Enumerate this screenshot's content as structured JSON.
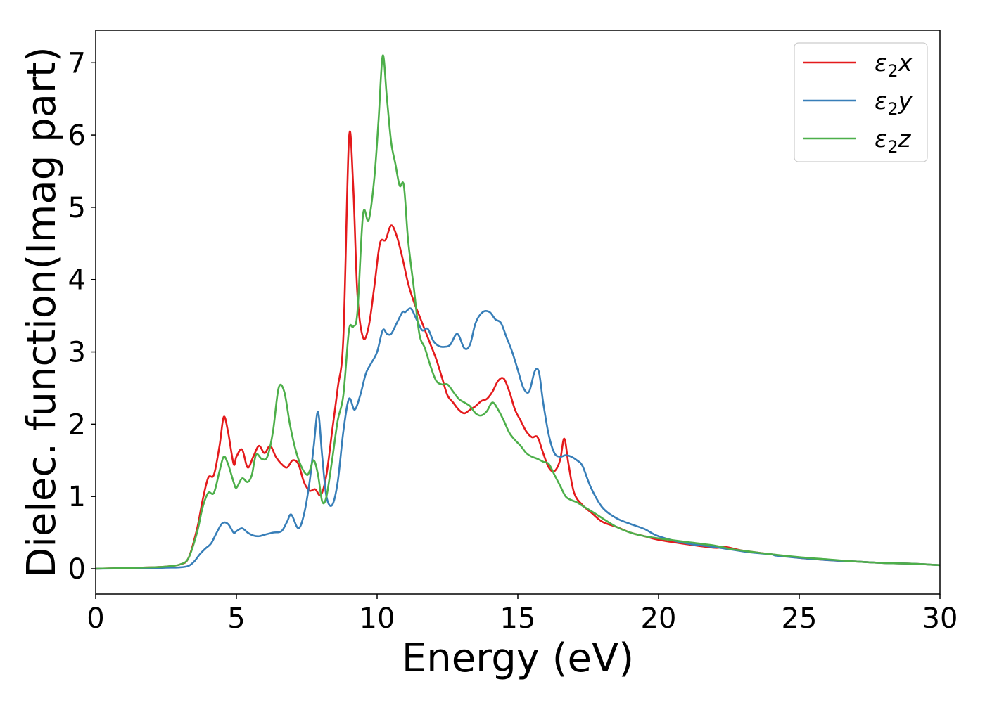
{
  "chart_data": {
    "type": "line",
    "xlabel": "Energy (eV)",
    "ylabel": "Dielec. function(Imag part)",
    "xlim": [
      0,
      30
    ],
    "ylim": [
      -0.35,
      7.45
    ],
    "xticks": [
      0,
      5,
      10,
      15,
      20,
      25,
      30
    ],
    "yticks": [
      0,
      1,
      2,
      3,
      4,
      5,
      6,
      7
    ],
    "grid": false,
    "legend_position": "top-right",
    "series": [
      {
        "name": "ε₂x",
        "legend": {
          "symbol": "ε",
          "sub": "2",
          "suffix": "x"
        },
        "color": "#e41a1c",
        "x": [
          0,
          1,
          2,
          2.5,
          3,
          3.3,
          3.6,
          3.8,
          4.0,
          4.2,
          4.4,
          4.55,
          4.7,
          4.9,
          5.0,
          5.2,
          5.4,
          5.6,
          5.8,
          6.0,
          6.2,
          6.4,
          6.6,
          6.8,
          7.0,
          7.2,
          7.4,
          7.6,
          7.8,
          8.0,
          8.2,
          8.4,
          8.6,
          8.8,
          9.0,
          9.15,
          9.3,
          9.5,
          9.7,
          9.9,
          10.1,
          10.3,
          10.5,
          10.7,
          10.9,
          11.1,
          11.3,
          11.5,
          11.7,
          11.9,
          12.1,
          12.3,
          12.5,
          12.7,
          12.9,
          13.1,
          13.3,
          13.5,
          13.7,
          13.9,
          14.1,
          14.3,
          14.5,
          14.7,
          14.9,
          15.1,
          15.3,
          15.5,
          15.7,
          15.9,
          16.1,
          16.3,
          16.5,
          16.65,
          16.8,
          17.0,
          17.3,
          17.6,
          18.0,
          18.5,
          19.0,
          19.5,
          20.0,
          21.0,
          22.0,
          22.4,
          23.0,
          24.0,
          25.0,
          26.0,
          27.0,
          28.0,
          29.0,
          30.0
        ],
        "y": [
          0.0,
          0.01,
          0.02,
          0.03,
          0.06,
          0.15,
          0.55,
          0.95,
          1.26,
          1.3,
          1.7,
          2.1,
          1.9,
          1.45,
          1.55,
          1.65,
          1.4,
          1.55,
          1.7,
          1.6,
          1.7,
          1.55,
          1.45,
          1.4,
          1.5,
          1.45,
          1.2,
          1.08,
          1.1,
          1.02,
          1.3,
          1.9,
          2.5,
          3.2,
          5.95,
          5.3,
          3.8,
          3.2,
          3.35,
          3.9,
          4.5,
          4.55,
          4.75,
          4.6,
          4.3,
          3.95,
          3.7,
          3.5,
          3.3,
          3.1,
          2.9,
          2.65,
          2.4,
          2.3,
          2.2,
          2.15,
          2.2,
          2.25,
          2.32,
          2.35,
          2.45,
          2.6,
          2.63,
          2.45,
          2.2,
          2.05,
          1.9,
          1.82,
          1.82,
          1.6,
          1.4,
          1.35,
          1.5,
          1.8,
          1.45,
          1.05,
          0.88,
          0.78,
          0.65,
          0.58,
          0.5,
          0.45,
          0.4,
          0.34,
          0.29,
          0.3,
          0.25,
          0.2,
          0.15,
          0.12,
          0.1,
          0.08,
          0.07,
          0.05
        ]
      },
      {
        "name": "ε₂y",
        "legend": {
          "symbol": "ε",
          "sub": "2",
          "suffix": "y"
        },
        "color": "#377eb8",
        "x": [
          0,
          1,
          2,
          2.5,
          3,
          3.3,
          3.5,
          3.7,
          3.9,
          4.1,
          4.3,
          4.5,
          4.7,
          4.9,
          5.0,
          5.2,
          5.4,
          5.6,
          5.8,
          6.0,
          6.3,
          6.6,
          6.8,
          6.95,
          7.2,
          7.4,
          7.6,
          7.75,
          7.9,
          8.05,
          8.2,
          8.4,
          8.6,
          8.8,
          9.0,
          9.2,
          9.4,
          9.6,
          9.8,
          10.0,
          10.2,
          10.35,
          10.5,
          10.7,
          10.9,
          11.0,
          11.2,
          11.4,
          11.6,
          11.8,
          12.0,
          12.2,
          12.4,
          12.6,
          12.85,
          13.1,
          13.3,
          13.5,
          13.75,
          14.0,
          14.2,
          14.4,
          14.6,
          14.8,
          15.0,
          15.2,
          15.4,
          15.6,
          15.75,
          15.9,
          16.1,
          16.3,
          16.5,
          16.7,
          16.9,
          17.1,
          17.3,
          17.6,
          18.0,
          18.5,
          19.0,
          19.5,
          20.0,
          21.0,
          22.0,
          23.0,
          23.4,
          24.0,
          24.2,
          25.0,
          26.0,
          27.0,
          28.0,
          29.0,
          30.0
        ],
        "y": [
          0.0,
          0.005,
          0.01,
          0.015,
          0.02,
          0.04,
          0.1,
          0.2,
          0.28,
          0.35,
          0.5,
          0.63,
          0.62,
          0.5,
          0.52,
          0.56,
          0.5,
          0.46,
          0.45,
          0.47,
          0.5,
          0.52,
          0.65,
          0.75,
          0.56,
          0.75,
          1.2,
          1.7,
          2.17,
          1.55,
          1.0,
          0.88,
          1.2,
          1.9,
          2.35,
          2.2,
          2.4,
          2.7,
          2.85,
          3.0,
          3.3,
          3.25,
          3.25,
          3.4,
          3.55,
          3.55,
          3.6,
          3.45,
          3.3,
          3.32,
          3.15,
          3.08,
          3.07,
          3.1,
          3.25,
          3.05,
          3.1,
          3.4,
          3.55,
          3.55,
          3.45,
          3.4,
          3.2,
          3.0,
          2.75,
          2.5,
          2.45,
          2.73,
          2.72,
          2.3,
          1.85,
          1.6,
          1.55,
          1.57,
          1.55,
          1.5,
          1.42,
          1.12,
          0.85,
          0.7,
          0.62,
          0.55,
          0.45,
          0.35,
          0.3,
          0.24,
          0.22,
          0.2,
          0.18,
          0.15,
          0.12,
          0.1,
          0.08,
          0.07,
          0.05
        ]
      },
      {
        "name": "ε₂z",
        "legend": {
          "symbol": "ε",
          "sub": "2",
          "suffix": "z"
        },
        "color": "#4daf4a",
        "x": [
          0,
          1,
          2,
          2.5,
          3,
          3.3,
          3.6,
          3.8,
          4.0,
          4.2,
          4.4,
          4.55,
          4.7,
          4.9,
          5.0,
          5.2,
          5.4,
          5.55,
          5.7,
          5.9,
          6.1,
          6.3,
          6.5,
          6.7,
          6.9,
          7.1,
          7.3,
          7.5,
          7.6,
          7.75,
          7.9,
          8.05,
          8.2,
          8.4,
          8.6,
          8.8,
          9.0,
          9.15,
          9.3,
          9.5,
          9.7,
          9.9,
          10.05,
          10.2,
          10.35,
          10.5,
          10.65,
          10.8,
          10.95,
          11.1,
          11.3,
          11.5,
          11.7,
          11.9,
          12.1,
          12.3,
          12.5,
          12.7,
          12.9,
          13.1,
          13.3,
          13.5,
          13.7,
          13.9,
          14.1,
          14.3,
          14.5,
          14.7,
          14.9,
          15.1,
          15.3,
          15.5,
          15.7,
          15.9,
          16.1,
          16.3,
          16.5,
          16.7,
          16.9,
          17.1,
          17.3,
          17.6,
          18.0,
          18.5,
          19.0,
          19.5,
          20.0,
          21.0,
          22.0,
          22.6,
          23.0,
          24.0,
          25.0,
          26.0,
          27.0,
          28.0,
          29.0,
          30.0
        ],
        "y": [
          0.0,
          0.01,
          0.02,
          0.03,
          0.06,
          0.15,
          0.5,
          0.85,
          1.05,
          1.05,
          1.35,
          1.55,
          1.45,
          1.2,
          1.12,
          1.25,
          1.2,
          1.3,
          1.58,
          1.52,
          1.55,
          1.9,
          2.5,
          2.45,
          2.0,
          1.65,
          1.42,
          1.3,
          1.35,
          1.5,
          1.3,
          0.93,
          1.0,
          1.5,
          2.05,
          2.4,
          3.3,
          3.35,
          3.55,
          4.9,
          4.82,
          5.4,
          6.2,
          7.1,
          6.5,
          5.9,
          5.6,
          5.3,
          5.3,
          4.55,
          3.9,
          3.25,
          3.05,
          2.8,
          2.6,
          2.55,
          2.55,
          2.45,
          2.35,
          2.3,
          2.25,
          2.15,
          2.12,
          2.18,
          2.3,
          2.2,
          2.05,
          1.88,
          1.78,
          1.7,
          1.6,
          1.55,
          1.52,
          1.48,
          1.45,
          1.3,
          1.15,
          1.0,
          0.95,
          0.92,
          0.87,
          0.8,
          0.7,
          0.58,
          0.5,
          0.45,
          0.42,
          0.37,
          0.32,
          0.27,
          0.25,
          0.2,
          0.16,
          0.13,
          0.1,
          0.08,
          0.07,
          0.05
        ]
      }
    ]
  }
}
